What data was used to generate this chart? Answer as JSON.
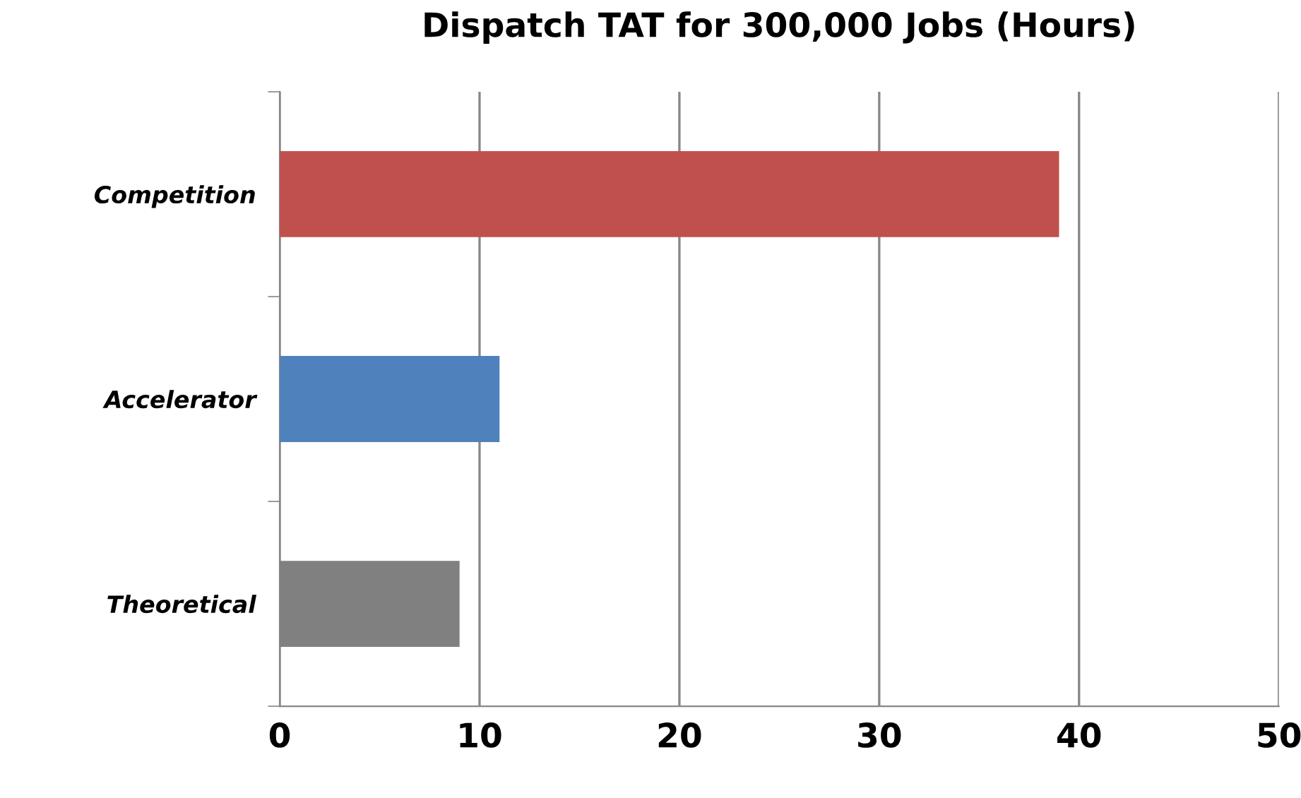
{
  "chart_data": {
    "type": "bar",
    "orientation": "horizontal",
    "title": "Dispatch TAT for 300,000 Jobs (Hours)",
    "categories": [
      "Competition",
      "Accelerator",
      "Theoretical"
    ],
    "values": [
      39,
      11,
      9
    ],
    "colors": [
      "#c0504d",
      "#4f81bd",
      "#808080"
    ],
    "xlim": [
      0,
      50
    ],
    "xticks": [
      0,
      10,
      20,
      30,
      40,
      50
    ],
    "grid": "x"
  }
}
